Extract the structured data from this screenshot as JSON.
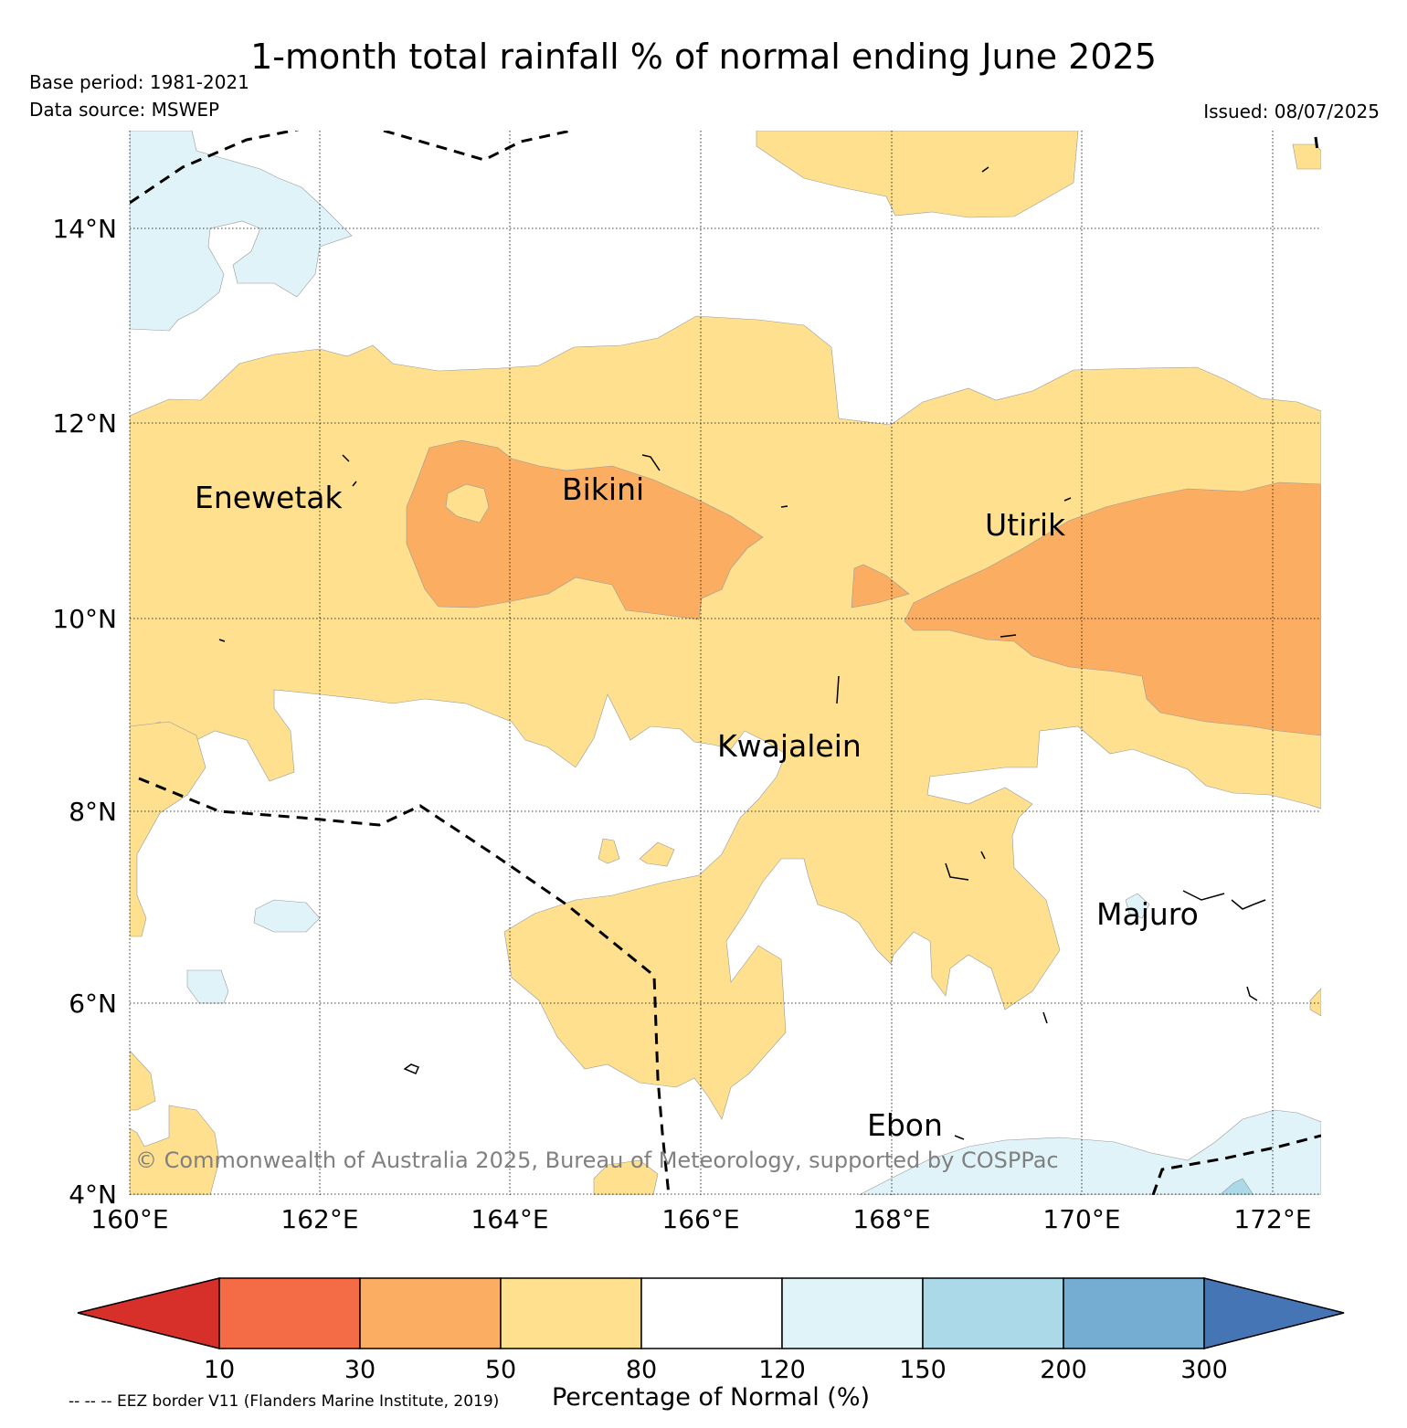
{
  "header": {
    "title": "1-month total rainfall % of normal ending June 2025",
    "base_period": "Base period: 1981-2021",
    "data_source": "Data source: MSWEP",
    "issued": "Issued: 08/07/2025"
  },
  "map": {
    "lat_labels": [
      "14°N",
      "12°N",
      "10°N",
      "8°N",
      "6°N",
      "4°N"
    ],
    "lon_labels": [
      "160°E",
      "162°E",
      "164°E",
      "166°E",
      "168°E",
      "170°E",
      "172°E"
    ],
    "places": [
      "Enewetak",
      "Bikini",
      "Utirik",
      "Kwajalein",
      "Majuro",
      "Ebon"
    ],
    "copyright": "© Commonwealth of Australia 2025, Bureau of Meteorology, supported by COSPPac"
  },
  "colorbar": {
    "label": "Percentage of Normal (%)",
    "ticks": [
      "10",
      "30",
      "50",
      "80",
      "120",
      "150",
      "200",
      "300"
    ],
    "colors": [
      "#d7302b",
      "#f46c45",
      "#fbad61",
      "#fee08f",
      "#ffffff",
      "#e0f3f8",
      "#abd9e8",
      "#74add1",
      "#4575b4"
    ]
  },
  "footer": {
    "eez_note": "-- -- -- EEZ border V11 (Flanders Marine Institute, 2019)"
  }
}
